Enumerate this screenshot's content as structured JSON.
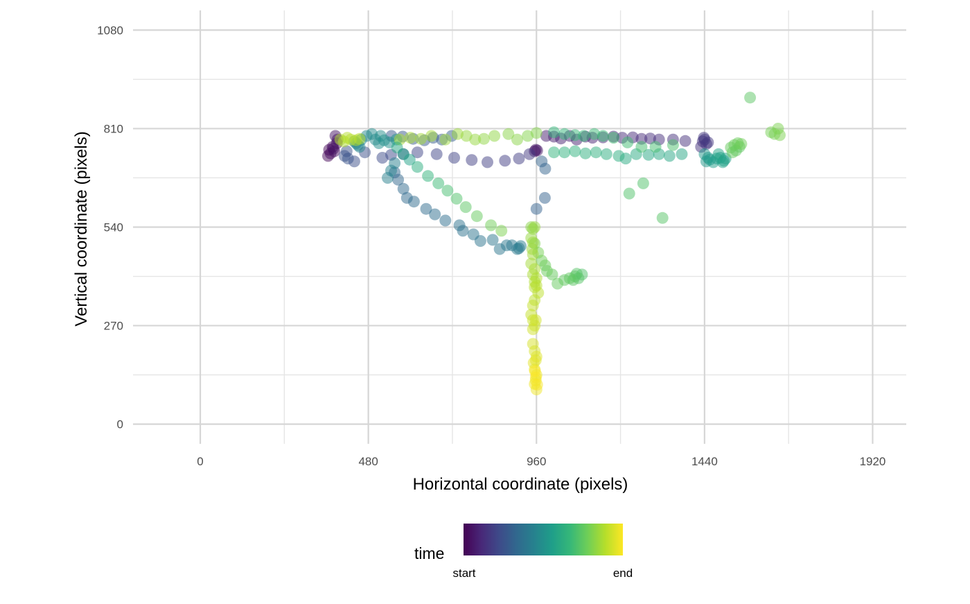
{
  "chart_data": {
    "type": "scatter",
    "title": "",
    "xlabel": "Horizontal coordinate (pixels)",
    "ylabel": "Vertical coordinate (pixels)",
    "xlim": [
      -192,
      2016
    ],
    "ylim": [
      -54,
      1134
    ],
    "x_ticks": [
      0,
      480,
      960,
      1440,
      1920
    ],
    "x_tick_labels": [
      "0",
      "480",
      "960",
      "1440",
      "1920"
    ],
    "x_minor_gridlines": [
      240,
      720,
      1200,
      1680
    ],
    "y_ticks": [
      0,
      270,
      540,
      810,
      1080
    ],
    "y_tick_labels": [
      "0",
      "270",
      "540",
      "810",
      "1080"
    ],
    "y_minor_gridlines": [
      135,
      405,
      675,
      945
    ],
    "grid": true,
    "color_scale": "viridis",
    "color_stops": [
      "#440154",
      "#482878",
      "#3e4a89",
      "#31688e",
      "#26828e",
      "#1f9e89",
      "#35b779",
      "#6ece58",
      "#b5de2b",
      "#fde725"
    ],
    "marker_opacity": 0.5,
    "legend": {
      "title": "time",
      "labels": [
        "start",
        "end"
      ],
      "placement": "bottom"
    },
    "points": [
      [
        365,
        735,
        0.02
      ],
      [
        368,
        752,
        0.02
      ],
      [
        372,
        742,
        0.03
      ],
      [
        378,
        760,
        0.03
      ],
      [
        383,
        748,
        0.04
      ],
      [
        390,
        770,
        0.04
      ],
      [
        392,
        780,
        0.05
      ],
      [
        386,
        790,
        0.05
      ],
      [
        380,
        755,
        0.05
      ],
      [
        962,
        750,
        0.06
      ],
      [
        958,
        752,
        0.06
      ],
      [
        955,
        748,
        0.06
      ],
      [
        988,
        790,
        0.08
      ],
      [
        1010,
        788,
        0.08
      ],
      [
        1030,
        783,
        0.09
      ],
      [
        1055,
        790,
        0.09
      ],
      [
        1075,
        780,
        0.09
      ],
      [
        1100,
        788,
        0.1
      ],
      [
        1120,
        785,
        0.1
      ],
      [
        1150,
        786,
        0.11
      ],
      [
        1180,
        788,
        0.11
      ],
      [
        1205,
        785,
        0.12
      ],
      [
        1235,
        786,
        0.12
      ],
      [
        1260,
        782,
        0.12
      ],
      [
        1285,
        783,
        0.13
      ],
      [
        1310,
        780,
        0.13
      ],
      [
        1350,
        780,
        0.14
      ],
      [
        1385,
        776,
        0.14
      ],
      [
        1430,
        760,
        0.15
      ],
      [
        1435,
        775,
        0.15
      ],
      [
        1440,
        780,
        0.16
      ],
      [
        1445,
        768,
        0.16
      ],
      [
        1450,
        772,
        0.16
      ],
      [
        1438,
        785,
        0.16
      ],
      [
        940,
        740,
        0.17
      ],
      [
        910,
        728,
        0.18
      ],
      [
        870,
        722,
        0.18
      ],
      [
        820,
        718,
        0.19
      ],
      [
        775,
        724,
        0.19
      ],
      [
        725,
        730,
        0.2
      ],
      [
        675,
        740,
        0.21
      ],
      [
        620,
        745,
        0.21
      ],
      [
        580,
        740,
        0.22
      ],
      [
        545,
        738,
        0.22
      ],
      [
        520,
        730,
        0.23
      ],
      [
        470,
        745,
        0.24
      ],
      [
        440,
        720,
        0.24
      ],
      [
        418,
        748,
        0.25
      ],
      [
        412,
        735,
        0.25
      ],
      [
        422,
        728,
        0.26
      ],
      [
        546,
        790,
        0.27
      ],
      [
        578,
        788,
        0.27
      ],
      [
        608,
        782,
        0.28
      ],
      [
        640,
        778,
        0.28
      ],
      [
        665,
        785,
        0.29
      ],
      [
        690,
        780,
        0.29
      ],
      [
        718,
        790,
        0.3
      ],
      [
        960,
        590,
        0.31
      ],
      [
        984,
        620,
        0.31
      ],
      [
        985,
        700,
        0.32
      ],
      [
        975,
        720,
        0.32
      ],
      [
        555,
        690,
        0.33
      ],
      [
        565,
        670,
        0.33
      ],
      [
        580,
        645,
        0.34
      ],
      [
        590,
        620,
        0.34
      ],
      [
        610,
        610,
        0.35
      ],
      [
        645,
        590,
        0.35
      ],
      [
        670,
        575,
        0.36
      ],
      [
        700,
        558,
        0.36
      ],
      [
        740,
        545,
        0.37
      ],
      [
        750,
        530,
        0.37
      ],
      [
        780,
        520,
        0.38
      ],
      [
        800,
        502,
        0.38
      ],
      [
        835,
        505,
        0.39
      ],
      [
        855,
        480,
        0.39
      ],
      [
        875,
        490,
        0.4
      ],
      [
        890,
        490,
        0.4
      ],
      [
        905,
        480,
        0.41
      ],
      [
        910,
        482,
        0.41
      ],
      [
        915,
        488,
        0.42
      ],
      [
        535,
        675,
        0.43
      ],
      [
        555,
        715,
        0.43
      ],
      [
        545,
        695,
        0.44
      ],
      [
        440,
        775,
        0.45
      ],
      [
        445,
        770,
        0.45
      ],
      [
        450,
        765,
        0.46
      ],
      [
        455,
        760,
        0.46
      ],
      [
        460,
        780,
        0.47
      ],
      [
        475,
        790,
        0.47
      ],
      [
        490,
        795,
        0.48
      ],
      [
        500,
        780,
        0.48
      ],
      [
        510,
        770,
        0.49
      ],
      [
        515,
        790,
        0.49
      ],
      [
        525,
        778,
        0.5
      ],
      [
        540,
        772,
        0.5
      ],
      [
        560,
        780,
        0.51
      ],
      [
        1440,
        740,
        0.53
      ],
      [
        1445,
        720,
        0.53
      ],
      [
        1450,
        730,
        0.54
      ],
      [
        1455,
        725,
        0.54
      ],
      [
        1465,
        718,
        0.55
      ],
      [
        1475,
        728,
        0.55
      ],
      [
        1485,
        730,
        0.56
      ],
      [
        1495,
        722,
        0.56
      ],
      [
        1500,
        728,
        0.57
      ],
      [
        1492,
        718,
        0.57
      ],
      [
        1480,
        740,
        0.58
      ],
      [
        1375,
        740,
        0.59
      ],
      [
        1340,
        735,
        0.59
      ],
      [
        1310,
        740,
        0.6
      ],
      [
        1280,
        738,
        0.6
      ],
      [
        1245,
        740,
        0.61
      ],
      [
        1215,
        728,
        0.61
      ],
      [
        1195,
        735,
        0.62
      ],
      [
        1160,
        740,
        0.62
      ],
      [
        1130,
        745,
        0.63
      ],
      [
        1100,
        742,
        0.63
      ],
      [
        1070,
        748,
        0.64
      ],
      [
        1040,
        745,
        0.64
      ],
      [
        1010,
        745,
        0.65
      ],
      [
        1010,
        800,
        0.66
      ],
      [
        1040,
        795,
        0.66
      ],
      [
        1070,
        792,
        0.67
      ],
      [
        1095,
        790,
        0.67
      ],
      [
        1125,
        795,
        0.68
      ],
      [
        1150,
        790,
        0.68
      ],
      [
        1180,
        785,
        0.69
      ],
      [
        1220,
        772,
        0.69
      ],
      [
        1260,
        760,
        0.7
      ],
      [
        1300,
        760,
        0.7
      ],
      [
        1350,
        765,
        0.71
      ],
      [
        1225,
        632,
        0.72
      ],
      [
        1265,
        660,
        0.72
      ],
      [
        1320,
        565,
        0.73
      ],
      [
        1570,
        895,
        0.74
      ],
      [
        1540,
        760,
        0.75
      ],
      [
        1530,
        750,
        0.75
      ],
      [
        1520,
        745,
        0.76
      ],
      [
        1515,
        758,
        0.76
      ],
      [
        1525,
        765,
        0.77
      ],
      [
        1535,
        770,
        0.77
      ],
      [
        1545,
        768,
        0.78
      ],
      [
        1630,
        800,
        0.79
      ],
      [
        1640,
        795,
        0.79
      ],
      [
        1650,
        810,
        0.8
      ],
      [
        1655,
        792,
        0.8
      ],
      [
        960,
        798,
        0.81
      ],
      [
        935,
        790,
        0.81
      ],
      [
        905,
        780,
        0.82
      ],
      [
        880,
        795,
        0.82
      ],
      [
        840,
        790,
        0.83
      ],
      [
        810,
        782,
        0.83
      ],
      [
        785,
        780,
        0.84
      ],
      [
        760,
        790,
        0.84
      ],
      [
        735,
        795,
        0.85
      ],
      [
        700,
        780,
        0.85
      ],
      [
        660,
        790,
        0.86
      ],
      [
        630,
        782,
        0.86
      ],
      [
        600,
        785,
        0.87
      ],
      [
        570,
        780,
        0.87
      ],
      [
        400,
        780,
        0.88
      ],
      [
        410,
        775,
        0.88
      ],
      [
        420,
        785,
        0.89
      ],
      [
        430,
        780,
        0.89
      ],
      [
        445,
        778,
        0.9
      ],
      [
        455,
        782,
        0.9
      ],
      [
        562,
        758,
        0.6
      ],
      [
        580,
        740,
        0.58
      ],
      [
        598,
        725,
        0.57
      ],
      [
        620,
        705,
        0.62
      ],
      [
        650,
        680,
        0.65
      ],
      [
        680,
        660,
        0.68
      ],
      [
        706,
        640,
        0.7
      ],
      [
        732,
        618,
        0.72
      ],
      [
        758,
        595,
        0.74
      ],
      [
        790,
        570,
        0.76
      ],
      [
        830,
        545,
        0.78
      ],
      [
        860,
        530,
        0.8
      ],
      [
        1090,
        410,
        0.72
      ],
      [
        1080,
        400,
        0.73
      ],
      [
        1075,
        412,
        0.73
      ],
      [
        1070,
        405,
        0.74
      ],
      [
        1065,
        395,
        0.74
      ],
      [
        1055,
        400,
        0.75
      ],
      [
        1040,
        395,
        0.75
      ],
      [
        1020,
        385,
        0.76
      ],
      [
        1005,
        410,
        0.76
      ],
      [
        990,
        420,
        0.77
      ],
      [
        985,
        435,
        0.77
      ],
      [
        975,
        448,
        0.78
      ],
      [
        965,
        470,
        0.79
      ],
      [
        955,
        495,
        0.8
      ],
      [
        945,
        540,
        0.82
      ],
      [
        950,
        535,
        0.83
      ],
      [
        955,
        540,
        0.84
      ],
      [
        945,
        510,
        0.84
      ],
      [
        950,
        498,
        0.85
      ],
      [
        948,
        480,
        0.85
      ],
      [
        950,
        465,
        0.86
      ],
      [
        945,
        440,
        0.86
      ],
      [
        955,
        425,
        0.87
      ],
      [
        950,
        410,
        0.87
      ],
      [
        960,
        400,
        0.88
      ],
      [
        955,
        390,
        0.88
      ],
      [
        960,
        380,
        0.89
      ],
      [
        955,
        375,
        0.89
      ],
      [
        965,
        360,
        0.9
      ],
      [
        955,
        340,
        0.9
      ],
      [
        950,
        325,
        0.91
      ],
      [
        945,
        300,
        0.91
      ],
      [
        950,
        285,
        0.92
      ],
      [
        955,
        270,
        0.92
      ],
      [
        958,
        285,
        0.93
      ],
      [
        950,
        260,
        0.93
      ],
      [
        950,
        220,
        0.94
      ],
      [
        955,
        200,
        0.94
      ],
      [
        960,
        185,
        0.95
      ],
      [
        958,
        175,
        0.95
      ],
      [
        952,
        168,
        0.96
      ],
      [
        955,
        150,
        0.96
      ],
      [
        960,
        135,
        0.97
      ],
      [
        958,
        120,
        0.97
      ],
      [
        955,
        110,
        0.98
      ],
      [
        960,
        95,
        0.98
      ],
      [
        962,
        108,
        0.99
      ],
      [
        958,
        128,
        0.99
      ],
      [
        956,
        145,
        1.0
      ]
    ]
  }
}
